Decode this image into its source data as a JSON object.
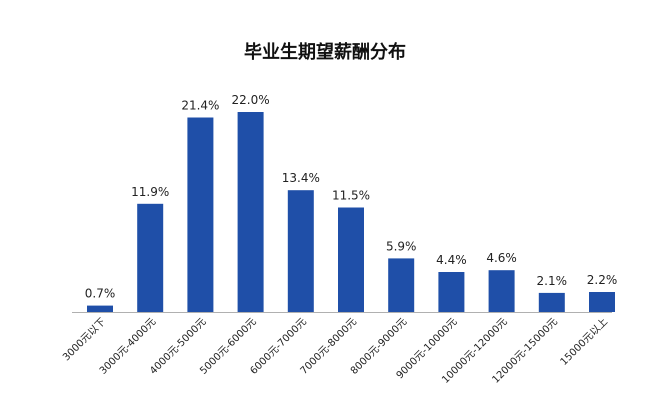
{
  "chart_data": {
    "type": "bar",
    "title": "毕业生期望薪酬分布",
    "categories": [
      "3000元以下",
      "3000元-4000元",
      "4000元-5000元",
      "5000元-6000元",
      "6000元-7000元",
      "7000元-8000元",
      "8000元-9000元",
      "9000元-10000元",
      "10000元-12000元",
      "12000元-15000元",
      "15000元以上"
    ],
    "values": [
      0.7,
      11.9,
      21.4,
      22.0,
      13.4,
      11.5,
      5.9,
      4.4,
      4.6,
      2.1,
      2.2
    ],
    "value_labels": [
      "0.7%",
      "11.9%",
      "21.4%",
      "22.0%",
      "13.4%",
      "11.5%",
      "5.9%",
      "4.4%",
      "4.6%",
      "2.1%",
      "2.2%"
    ],
    "xlabel": "",
    "ylabel": "",
    "ylim": [
      0,
      22.0
    ],
    "bar_color": "#1f4fa8",
    "axis_color": "#b0b0b0",
    "grid": false,
    "legend": "none"
  }
}
